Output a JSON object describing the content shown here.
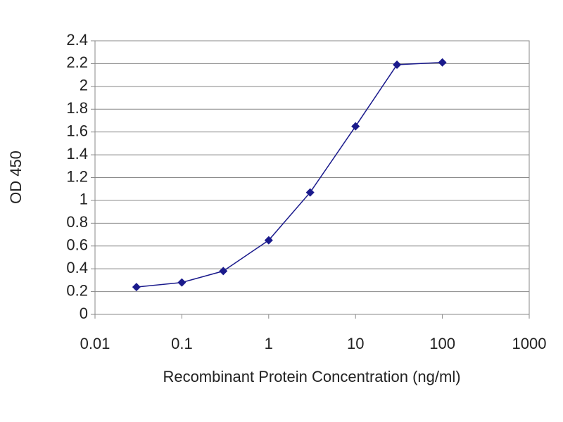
{
  "chart_data": {
    "type": "line",
    "x_label": "Recombinant Protein Concentration (ng/ml)",
    "y_label": "OD 450",
    "x": [
      0.03,
      0.1,
      0.3,
      1,
      3,
      10,
      30,
      100
    ],
    "series": [
      {
        "color": "#1a1a8c",
        "values": [
          0.24,
          0.28,
          0.38,
          0.65,
          1.07,
          1.65,
          2.19,
          2.21
        ]
      }
    ],
    "xscale": "log",
    "xlim": [
      0.01,
      1000
    ],
    "xticks": [
      0.01,
      0.1,
      1,
      10,
      100,
      1000
    ],
    "ylim": [
      0,
      2.4
    ],
    "yticks": [
      0,
      0.2,
      0.4,
      0.6,
      0.8,
      1,
      1.2,
      1.4,
      1.6,
      1.8,
      2,
      2.2,
      2.4
    ],
    "grid": true
  }
}
